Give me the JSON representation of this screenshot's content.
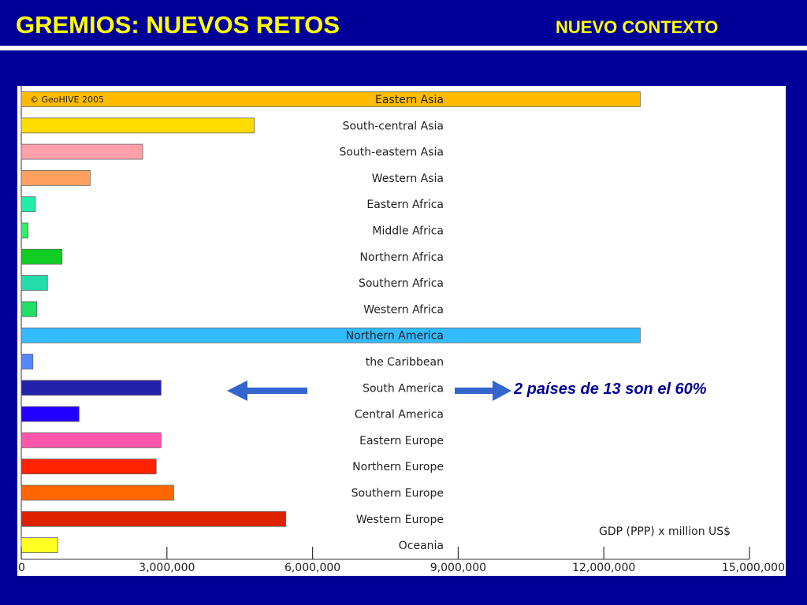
{
  "slide": {
    "title": "GREMIOS: NUEVOS RETOS",
    "subtitle": "NUEVO CONTEXTO",
    "callout": "2 países de 13 son el 60%"
  },
  "chart_data": {
    "type": "bar",
    "orientation": "horizontal",
    "copyright": "© GeoHIVE 2005",
    "xlabel": "GDP (PPP) x million US$",
    "xlim": [
      0,
      15000000
    ],
    "xticks": [
      0,
      3000000,
      6000000,
      9000000,
      12000000,
      15000000
    ],
    "xtick_labels": [
      "0",
      "3,000,000",
      "6,000,000",
      "9,000,000",
      "12,000,000",
      "15,000,000"
    ],
    "grid": false,
    "categories": [
      "Eastern Asia",
      "South-central Asia",
      "South-eastern Asia",
      "Western Asia",
      "Eastern Africa",
      "Middle Africa",
      "Northern Africa",
      "Southern Africa",
      "Western Africa",
      "Northern America",
      "the Caribbean",
      "South America",
      "Central America",
      "Eastern Europe",
      "Northern Europe",
      "Southern Europe",
      "Western Europe",
      "Oceania"
    ],
    "values": [
      12750000,
      4800000,
      2500000,
      1420000,
      290000,
      140000,
      840000,
      540000,
      320000,
      12750000,
      240000,
      2880000,
      1190000,
      2880000,
      2780000,
      3140000,
      5450000,
      750000
    ],
    "colors": [
      "#ffbb00",
      "#ffdd00",
      "#ffa0aa",
      "#ffa060",
      "#22eeaa",
      "#33ee66",
      "#11cc22",
      "#22ddaa",
      "#22dd66",
      "#33bbff",
      "#5588ff",
      "#2222aa",
      "#2200ff",
      "#ff55aa",
      "#ff2200",
      "#ff6600",
      "#dd2200",
      "#ffff22"
    ]
  }
}
